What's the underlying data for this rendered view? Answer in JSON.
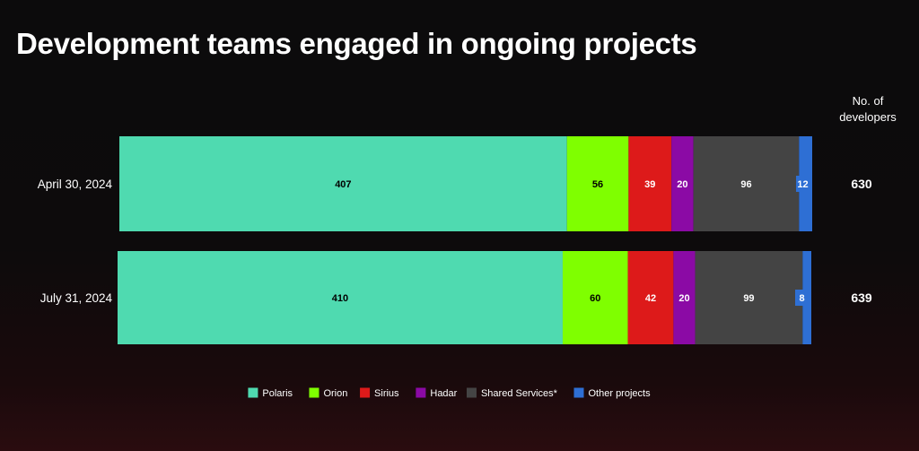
{
  "title": "Development teams engaged in ongoing projects",
  "total_header": "No. of\ndevelopers",
  "chart_data": {
    "type": "bar",
    "orientation": "horizontal",
    "stacked": true,
    "categories": [
      "April 30, 2024",
      "July 31, 2024"
    ],
    "series": [
      {
        "name": "Polaris",
        "color": "#4fdab0",
        "values": [
          407,
          410
        ]
      },
      {
        "name": "Orion",
        "color": "#7fff00",
        "values": [
          56,
          60
        ]
      },
      {
        "name": "Sirius",
        "color": "#dd1a1a",
        "values": [
          39,
          42
        ]
      },
      {
        "name": "Hadar",
        "color": "#8b0aa5",
        "values": [
          20,
          20
        ]
      },
      {
        "name": "Shared Services*",
        "color": "#444444",
        "values": [
          96,
          99
        ]
      },
      {
        "name": "Other projects",
        "color": "#2e6fd4",
        "values": [
          12,
          8
        ]
      }
    ],
    "totals": [
      630,
      639
    ],
    "legend_position": "bottom-center",
    "grid": false
  }
}
